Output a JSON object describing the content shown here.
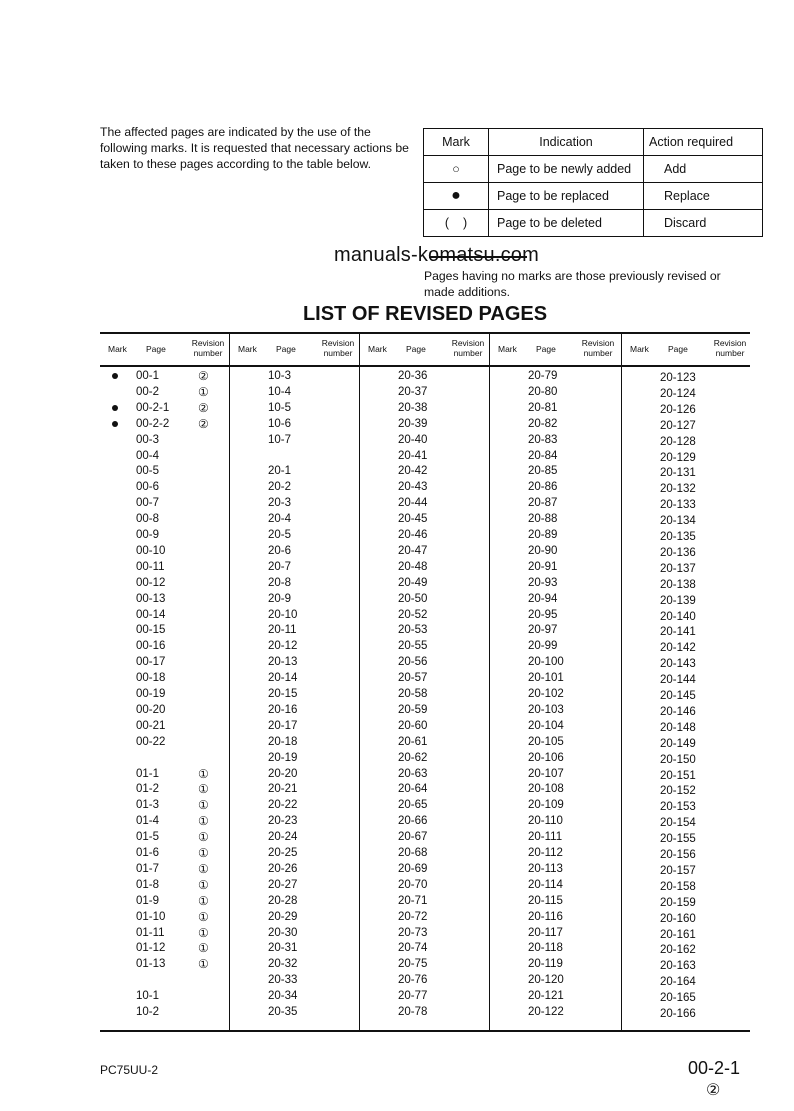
{
  "intro": "The affected pages are indicated by the use of the following marks.  It is requested that necessary actions be taken to these pages according to the table below.",
  "marks_table": {
    "headers": [
      "Mark",
      "Indication",
      "Action required"
    ],
    "rows": [
      {
        "mark": "○",
        "indication": "Page to be newly added",
        "action": "Add"
      },
      {
        "mark": "●",
        "indication": "Page to be replaced",
        "action": "Replace"
      },
      {
        "mark": "(    )",
        "indication": "Page to be deleted",
        "action": "Discard"
      }
    ]
  },
  "watermark": "manuals-komatsu.com",
  "note": "Pages having no marks are those previously revised or made additions.",
  "title": "LIST OF REVISED PAGES",
  "column_headers": {
    "mark": "Mark",
    "page": "Page",
    "revision": "Revision number"
  },
  "columns": [
    [
      {
        "mark": "●",
        "page": "00-1",
        "rev": "②"
      },
      {
        "mark": "",
        "page": "00-2",
        "rev": "①"
      },
      {
        "mark": "●",
        "page": "00-2-1",
        "rev": "②"
      },
      {
        "mark": "●",
        "page": "00-2-2",
        "rev": "②"
      },
      {
        "page": "00-3"
      },
      {
        "page": "00-4"
      },
      {
        "page": "00-5"
      },
      {
        "page": "00-6"
      },
      {
        "page": "00-7"
      },
      {
        "page": "00-8"
      },
      {
        "page": "00-9"
      },
      {
        "page": "00-10"
      },
      {
        "page": "00-11"
      },
      {
        "page": "00-12"
      },
      {
        "page": "00-13"
      },
      {
        "page": "00-14"
      },
      {
        "page": "00-15"
      },
      {
        "page": "00-16"
      },
      {
        "page": "00-17"
      },
      {
        "page": "00-18"
      },
      {
        "page": "00-19"
      },
      {
        "page": "00-20"
      },
      {
        "page": "00-21"
      },
      {
        "page": "00-22"
      },
      {
        "page": ""
      },
      {
        "page": "01-1",
        "rev": "①"
      },
      {
        "page": "01-2",
        "rev": "①"
      },
      {
        "page": "01-3",
        "rev": "①"
      },
      {
        "page": "01-4",
        "rev": "①"
      },
      {
        "page": "01-5",
        "rev": "①"
      },
      {
        "page": "01-6",
        "rev": "①"
      },
      {
        "page": "01-7",
        "rev": "①"
      },
      {
        "page": "01-8",
        "rev": "①"
      },
      {
        "page": "01-9",
        "rev": "①"
      },
      {
        "page": "01-10",
        "rev": "①"
      },
      {
        "page": "01-11",
        "rev": "①"
      },
      {
        "page": "01-12",
        "rev": "①"
      },
      {
        "page": "01-13",
        "rev": "①"
      },
      {
        "page": ""
      },
      {
        "page": "10-1"
      },
      {
        "page": "10-2"
      }
    ],
    [
      {
        "page": "10-3"
      },
      {
        "page": "10-4"
      },
      {
        "page": "10-5"
      },
      {
        "page": "10-6"
      },
      {
        "page": "10-7"
      },
      {
        "page": ""
      },
      {
        "page": "20-1"
      },
      {
        "page": "20-2"
      },
      {
        "page": "20-3"
      },
      {
        "page": "20-4"
      },
      {
        "page": "20-5"
      },
      {
        "page": "20-6"
      },
      {
        "page": "20-7"
      },
      {
        "page": "20-8"
      },
      {
        "page": "20-9"
      },
      {
        "page": "20-10"
      },
      {
        "page": "20-11"
      },
      {
        "page": "20-12"
      },
      {
        "page": "20-13"
      },
      {
        "page": "20-14"
      },
      {
        "page": "20-15"
      },
      {
        "page": "20-16"
      },
      {
        "page": "20-17"
      },
      {
        "page": "20-18"
      },
      {
        "page": "20-19"
      },
      {
        "page": "20-20"
      },
      {
        "page": "20-21"
      },
      {
        "page": "20-22"
      },
      {
        "page": "20-23"
      },
      {
        "page": "20-24"
      },
      {
        "page": "20-25"
      },
      {
        "page": "20-26"
      },
      {
        "page": "20-27"
      },
      {
        "page": "20-28"
      },
      {
        "page": "20-29"
      },
      {
        "page": "20-30"
      },
      {
        "page": "20-31"
      },
      {
        "page": "20-32"
      },
      {
        "page": "20-33"
      },
      {
        "page": "20-34"
      },
      {
        "page": "20-35"
      }
    ],
    [
      {
        "page": "20-36"
      },
      {
        "page": "20-37"
      },
      {
        "page": "20-38"
      },
      {
        "page": "20-39"
      },
      {
        "page": "20-40"
      },
      {
        "page": "20-41"
      },
      {
        "page": "20-42"
      },
      {
        "page": "20-43"
      },
      {
        "page": "20-44"
      },
      {
        "page": "20-45"
      },
      {
        "page": "20-46"
      },
      {
        "page": "20-47"
      },
      {
        "page": "20-48"
      },
      {
        "page": "20-49"
      },
      {
        "page": "20-50"
      },
      {
        "page": "20-52"
      },
      {
        "page": "20-53"
      },
      {
        "page": "20-55"
      },
      {
        "page": "20-56"
      },
      {
        "page": "20-57"
      },
      {
        "page": "20-58"
      },
      {
        "page": "20-59"
      },
      {
        "page": "20-60"
      },
      {
        "page": "20-61"
      },
      {
        "page": "20-62"
      },
      {
        "page": "20-63"
      },
      {
        "page": "20-64"
      },
      {
        "page": "20-65"
      },
      {
        "page": "20-66"
      },
      {
        "page": "20-67"
      },
      {
        "page": "20-68"
      },
      {
        "page": "20-69"
      },
      {
        "page": "20-70"
      },
      {
        "page": "20-71"
      },
      {
        "page": "20-72"
      },
      {
        "page": "20-73"
      },
      {
        "page": "20-74"
      },
      {
        "page": "20-75"
      },
      {
        "page": "20-76"
      },
      {
        "page": "20-77"
      },
      {
        "page": "20-78"
      }
    ],
    [
      {
        "page": "20-79"
      },
      {
        "page": "20-80"
      },
      {
        "page": "20-81"
      },
      {
        "page": "20-82"
      },
      {
        "page": "20-83"
      },
      {
        "page": "20-84"
      },
      {
        "page": "20-85"
      },
      {
        "page": "20-86"
      },
      {
        "page": "20-87"
      },
      {
        "page": "20-88"
      },
      {
        "page": "20-89"
      },
      {
        "page": "20-90"
      },
      {
        "page": "20-91"
      },
      {
        "page": "20-93"
      },
      {
        "page": "20-94"
      },
      {
        "page": "20-95"
      },
      {
        "page": "20-97"
      },
      {
        "page": "20-99"
      },
      {
        "page": "20-100"
      },
      {
        "page": "20-101"
      },
      {
        "page": "20-102"
      },
      {
        "page": "20-103"
      },
      {
        "page": "20-104"
      },
      {
        "page": "20-105"
      },
      {
        "page": "20-106"
      },
      {
        "page": "20-107"
      },
      {
        "page": "20-108"
      },
      {
        "page": "20-109"
      },
      {
        "page": "20-110"
      },
      {
        "page": "20-111"
      },
      {
        "page": "20-112"
      },
      {
        "page": "20-113"
      },
      {
        "page": "20-114"
      },
      {
        "page": "20-115"
      },
      {
        "page": "20-116"
      },
      {
        "page": "20-117"
      },
      {
        "page": "20-118"
      },
      {
        "page": "20-119"
      },
      {
        "page": "20-120"
      },
      {
        "page": "20-121"
      },
      {
        "page": "20-122"
      }
    ],
    [
      {
        "page": "20-123"
      },
      {
        "page": "20-124"
      },
      {
        "page": "20-126"
      },
      {
        "page": "20-127"
      },
      {
        "page": "20-128"
      },
      {
        "page": "20-129"
      },
      {
        "page": "20-131"
      },
      {
        "page": "20-132"
      },
      {
        "page": "20-133"
      },
      {
        "page": "20-134"
      },
      {
        "page": "20-135"
      },
      {
        "page": "20-136"
      },
      {
        "page": "20-137"
      },
      {
        "page": "20-138"
      },
      {
        "page": "20-139"
      },
      {
        "page": "20-140"
      },
      {
        "page": "20-141"
      },
      {
        "page": "20-142"
      },
      {
        "page": "20-143"
      },
      {
        "page": "20-144"
      },
      {
        "page": "20-145"
      },
      {
        "page": "20-146"
      },
      {
        "page": "20-148"
      },
      {
        "page": "20-149"
      },
      {
        "page": "20-150"
      },
      {
        "page": "20-151"
      },
      {
        "page": "20-152"
      },
      {
        "page": "20-153"
      },
      {
        "page": "20-154"
      },
      {
        "page": "20-155"
      },
      {
        "page": "20-156"
      },
      {
        "page": "20-157"
      },
      {
        "page": "20-158"
      },
      {
        "page": "20-159"
      },
      {
        "page": "20-160"
      },
      {
        "page": "20-161"
      },
      {
        "page": "20-162"
      },
      {
        "page": "20-163"
      },
      {
        "page": "20-164"
      },
      {
        "page": "20-165"
      },
      {
        "page": "20-166"
      }
    ]
  ],
  "footer": {
    "model": "PC75UU-2",
    "page_number": "00-2-1",
    "page_revision": "②"
  }
}
